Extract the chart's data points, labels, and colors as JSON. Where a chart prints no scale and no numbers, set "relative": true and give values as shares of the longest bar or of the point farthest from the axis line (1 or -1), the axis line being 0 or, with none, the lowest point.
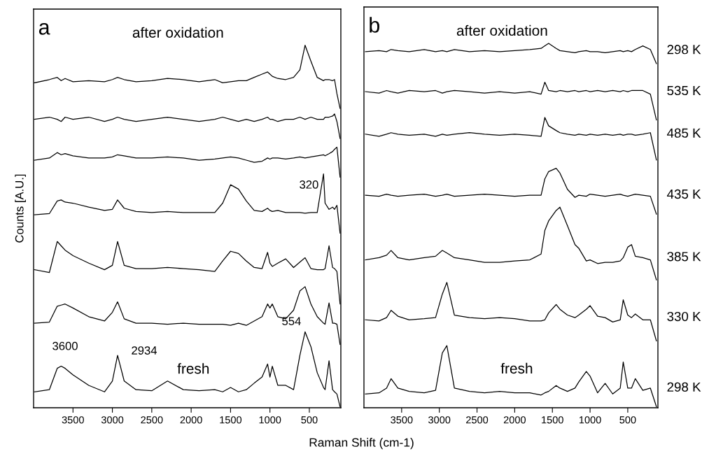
{
  "chart_data": [
    {
      "type": "line",
      "relative": true,
      "ylabel": "Counts [A.U.]",
      "xlabel": "Raman Shift (cm-1)",
      "xlim": [
        4000,
        100
      ],
      "xticks": [
        3500,
        3000,
        2500,
        2000,
        1500,
        1000,
        500
      ],
      "tick_labels": "x",
      "x": [
        3990,
        3800,
        3700,
        3650,
        3600,
        3500,
        3300,
        3100,
        3000,
        2934,
        2850,
        2700,
        2500,
        2300,
        2100,
        1900,
        1700,
        1600,
        1500,
        1400,
        1300,
        1200,
        1100,
        1030,
        1000,
        970,
        900,
        800,
        700,
        620,
        554,
        480,
        400,
        320,
        300,
        250,
        205,
        180,
        150,
        110
      ],
      "annotations": [
        "a",
        "after oxidation",
        "fresh",
        {
          "text": "3600",
          "x": 3600,
          "y": 0.106
        },
        {
          "text": "2934",
          "x": 2934,
          "y": 0.142
        },
        {
          "text": "554",
          "x": 554,
          "y": 0.207
        },
        {
          "text": "320",
          "x": 320,
          "y": 0.644
        }
      ],
      "series": [
        {
          "color": "#000000",
          "values": [
            0.896,
            0.905,
            0.911,
            0.902,
            0.908,
            0.899,
            0.902,
            0.899,
            0.905,
            0.911,
            0.905,
            0.899,
            0.902,
            0.908,
            0.905,
            0.899,
            0.905,
            0.896,
            0.899,
            0.902,
            0.902,
            0.911,
            0.92,
            0.926,
            0.92,
            0.914,
            0.908,
            0.905,
            0.911,
            0.932,
            1.0,
            0.956,
            0.911,
            0.902,
            0.905,
            0.905,
            0.902,
            0.905,
            0.866,
            0.825
          ]
        },
        {
          "color": "#000000",
          "values": [
            0.795,
            0.801,
            0.795,
            0.789,
            0.801,
            0.795,
            0.801,
            0.789,
            0.795,
            0.801,
            0.795,
            0.789,
            0.795,
            0.801,
            0.795,
            0.789,
            0.795,
            0.801,
            0.795,
            0.789,
            0.795,
            0.789,
            0.795,
            0.801,
            0.795,
            0.795,
            0.789,
            0.795,
            0.795,
            0.801,
            0.795,
            0.801,
            0.795,
            0.795,
            0.801,
            0.801,
            0.804,
            0.81,
            0.789,
            0.742
          ]
        },
        {
          "color": "#000000",
          "values": [
            0.682,
            0.688,
            0.703,
            0.697,
            0.7,
            0.694,
            0.688,
            0.688,
            0.691,
            0.697,
            0.694,
            0.688,
            0.688,
            0.691,
            0.688,
            0.682,
            0.685,
            0.688,
            0.691,
            0.688,
            0.682,
            0.676,
            0.679,
            0.688,
            0.685,
            0.688,
            0.688,
            0.685,
            0.688,
            0.691,
            0.688,
            0.691,
            0.694,
            0.697,
            0.694,
            0.7,
            0.706,
            0.712,
            0.718,
            0.635
          ]
        },
        {
          "color": "#000000",
          "values": [
            0.531,
            0.534,
            0.569,
            0.572,
            0.566,
            0.563,
            0.552,
            0.543,
            0.546,
            0.572,
            0.549,
            0.54,
            0.537,
            0.54,
            0.537,
            0.537,
            0.537,
            0.563,
            0.614,
            0.602,
            0.569,
            0.543,
            0.54,
            0.549,
            0.543,
            0.54,
            0.543,
            0.537,
            0.537,
            0.537,
            0.535,
            0.537,
            0.537,
            0.644,
            0.563,
            0.546,
            0.552,
            0.546,
            0.557,
            0.48
          ]
        },
        {
          "color": "#000000",
          "values": [
            0.379,
            0.371,
            0.457,
            0.445,
            0.433,
            0.418,
            0.397,
            0.379,
            0.391,
            0.457,
            0.391,
            0.382,
            0.382,
            0.385,
            0.382,
            0.379,
            0.374,
            0.403,
            0.43,
            0.424,
            0.403,
            0.385,
            0.382,
            0.427,
            0.397,
            0.388,
            0.397,
            0.409,
            0.385,
            0.4,
            0.412,
            0.382,
            0.379,
            0.379,
            0.382,
            0.445,
            0.385,
            0.382,
            0.374,
            0.284
          ]
        },
        {
          "color": "#000000",
          "values": [
            0.231,
            0.234,
            0.278,
            0.281,
            0.284,
            0.273,
            0.249,
            0.237,
            0.261,
            0.29,
            0.243,
            0.231,
            0.231,
            0.228,
            0.231,
            0.228,
            0.228,
            0.228,
            0.225,
            0.231,
            0.225,
            0.237,
            0.249,
            0.284,
            0.273,
            0.284,
            0.249,
            0.243,
            0.267,
            0.32,
            0.332,
            0.284,
            0.249,
            0.231,
            0.228,
            0.287,
            0.231,
            0.231,
            0.228,
            0.172
          ]
        },
        {
          "color": "#000000",
          "values": [
            0.041,
            0.047,
            0.106,
            0.112,
            0.106,
            0.088,
            0.059,
            0.041,
            0.071,
            0.142,
            0.071,
            0.047,
            0.044,
            0.071,
            0.047,
            0.044,
            0.047,
            0.041,
            0.053,
            0.041,
            0.047,
            0.065,
            0.082,
            0.118,
            0.082,
            0.112,
            0.059,
            0.059,
            0.047,
            0.142,
            0.207,
            0.166,
            0.094,
            0.053,
            0.047,
            0.127,
            0.047,
            0.041,
            0.035,
            0.0
          ]
        }
      ]
    },
    {
      "type": "line",
      "relative": true,
      "xlim": [
        4000,
        100
      ],
      "xticks": [
        3500,
        3000,
        2500,
        2000,
        1500,
        1000,
        500
      ],
      "tick_labels": "x",
      "x": [
        3980,
        3800,
        3700,
        3640,
        3550,
        3400,
        3200,
        3050,
        2960,
        2900,
        2800,
        2600,
        2400,
        2200,
        2000,
        1800,
        1650,
        1600,
        1550,
        1450,
        1400,
        1300,
        1200,
        1150,
        1050,
        1000,
        900,
        800,
        700,
        600,
        560,
        500,
        450,
        400,
        300,
        200,
        120
      ],
      "annotations": [
        "b",
        "after oxidation",
        "fresh"
      ],
      "series": [
        {
          "name": "298 K",
          "color": "#000000",
          "values": [
            0.977,
            0.98,
            0.977,
            0.983,
            0.98,
            0.977,
            0.983,
            0.977,
            0.98,
            0.977,
            0.983,
            0.977,
            0.98,
            0.977,
            0.98,
            0.983,
            0.986,
            0.993,
            1.0,
            0.986,
            0.98,
            0.977,
            0.974,
            0.977,
            0.98,
            0.977,
            0.977,
            0.974,
            0.977,
            0.98,
            0.977,
            0.98,
            0.977,
            0.983,
            0.993,
            0.983,
            0.944
          ]
        },
        {
          "name": "535 K",
          "color": "#000000",
          "values": [
            0.867,
            0.863,
            0.87,
            0.867,
            0.863,
            0.87,
            0.867,
            0.87,
            0.863,
            0.867,
            0.87,
            0.867,
            0.863,
            0.867,
            0.863,
            0.867,
            0.86,
            0.893,
            0.87,
            0.867,
            0.87,
            0.867,
            0.87,
            0.867,
            0.87,
            0.867,
            0.87,
            0.867,
            0.87,
            0.867,
            0.87,
            0.867,
            0.87,
            0.87,
            0.87,
            0.86,
            0.789
          ]
        },
        {
          "name": "485 K",
          "color": "#000000",
          "values": [
            0.75,
            0.744,
            0.75,
            0.754,
            0.75,
            0.747,
            0.75,
            0.744,
            0.75,
            0.747,
            0.75,
            0.754,
            0.75,
            0.747,
            0.75,
            0.747,
            0.744,
            0.796,
            0.773,
            0.76,
            0.754,
            0.75,
            0.747,
            0.75,
            0.747,
            0.75,
            0.747,
            0.75,
            0.747,
            0.75,
            0.747,
            0.75,
            0.75,
            0.747,
            0.75,
            0.754,
            0.679
          ]
        },
        {
          "name": "435 K",
          "color": "#000000",
          "values": [
            0.582,
            0.579,
            0.585,
            0.582,
            0.579,
            0.582,
            0.585,
            0.579,
            0.582,
            0.585,
            0.579,
            0.582,
            0.585,
            0.582,
            0.579,
            0.582,
            0.582,
            0.627,
            0.647,
            0.656,
            0.643,
            0.598,
            0.576,
            0.582,
            0.579,
            0.585,
            0.582,
            0.579,
            0.582,
            0.585,
            0.582,
            0.579,
            0.582,
            0.585,
            0.582,
            0.579,
            0.53
          ]
        },
        {
          "name": "385 K",
          "color": "#000000",
          "values": [
            0.404,
            0.41,
            0.417,
            0.43,
            0.41,
            0.404,
            0.41,
            0.414,
            0.43,
            0.423,
            0.41,
            0.404,
            0.397,
            0.397,
            0.401,
            0.404,
            0.42,
            0.485,
            0.511,
            0.54,
            0.549,
            0.498,
            0.446,
            0.436,
            0.401,
            0.404,
            0.394,
            0.397,
            0.397,
            0.401,
            0.41,
            0.439,
            0.446,
            0.414,
            0.41,
            0.404,
            0.349
          ]
        },
        {
          "name": "330 K",
          "color": "#000000",
          "values": [
            0.239,
            0.236,
            0.245,
            0.265,
            0.249,
            0.239,
            0.242,
            0.245,
            0.31,
            0.342,
            0.252,
            0.245,
            0.242,
            0.245,
            0.242,
            0.236,
            0.236,
            0.239,
            0.258,
            0.281,
            0.268,
            0.252,
            0.245,
            0.252,
            0.268,
            0.278,
            0.249,
            0.245,
            0.233,
            0.239,
            0.294,
            0.252,
            0.245,
            0.255,
            0.239,
            0.239,
            0.181
          ]
        },
        {
          "name": "298 K",
          "color": "#000000",
          "values": [
            0.035,
            0.038,
            0.051,
            0.077,
            0.051,
            0.042,
            0.038,
            0.045,
            0.148,
            0.168,
            0.051,
            0.042,
            0.038,
            0.042,
            0.038,
            0.038,
            0.032,
            0.038,
            0.042,
            0.058,
            0.051,
            0.042,
            0.051,
            0.068,
            0.097,
            0.084,
            0.038,
            0.064,
            0.035,
            0.051,
            0.123,
            0.051,
            0.051,
            0.077,
            0.045,
            0.051,
            0.0
          ]
        }
      ]
    }
  ]
}
